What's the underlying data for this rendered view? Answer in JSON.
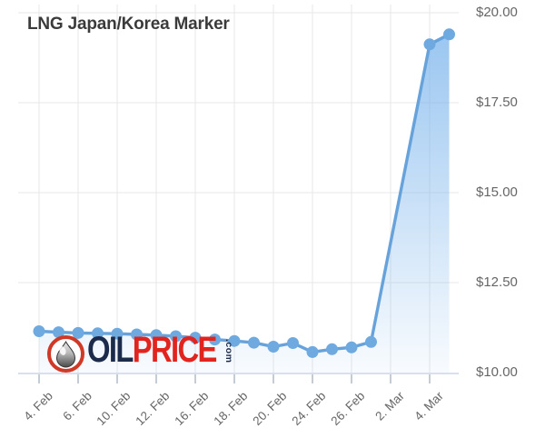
{
  "title": "LNG Japan/Korea Marker",
  "logo": {
    "word1": "OIL",
    "word2": "PRICE",
    "suffix": ".com",
    "circle_color": "#d13927",
    "word1_color": "#1c2b4a",
    "word2_color": "#e2241f"
  },
  "chart_data": {
    "type": "area",
    "title": "LNG Japan/Korea Marker",
    "ylabel": "",
    "xlabel": "",
    "unit": "USD",
    "ylim": [
      10,
      20
    ],
    "grid": "on",
    "legend": "none",
    "y_ticks": [
      {
        "label": "$10.00",
        "value": 10
      },
      {
        "label": "$12.50",
        "value": 12.5
      },
      {
        "label": "$15.00",
        "value": 15
      },
      {
        "label": "$17.50",
        "value": 17.5
      },
      {
        "label": "$20.00",
        "value": 20
      }
    ],
    "x_tick_labels": [
      {
        "label": "4. Feb",
        "index": 0
      },
      {
        "label": "6. Feb",
        "index": 2
      },
      {
        "label": "10. Feb",
        "index": 4
      },
      {
        "label": "12. Feb",
        "index": 6
      },
      {
        "label": "16. Feb",
        "index": 8
      },
      {
        "label": "18. Feb",
        "index": 10
      },
      {
        "label": "20. Feb",
        "index": 12
      },
      {
        "label": "24. Feb",
        "index": 14
      },
      {
        "label": "26. Feb",
        "index": 16
      },
      {
        "label": "2. Mar",
        "index": 18
      },
      {
        "label": "4. Mar",
        "index": 20
      }
    ],
    "points": [
      {
        "date": "4. Feb",
        "index": 0,
        "value": 11.15
      },
      {
        "date": "5. Feb",
        "index": 1,
        "value": 11.12
      },
      {
        "date": "6. Feb",
        "index": 2,
        "value": 11.1
      },
      {
        "date": "9. Feb",
        "index": 3,
        "value": 11.09
      },
      {
        "date": "10. Feb",
        "index": 4,
        "value": 11.08
      },
      {
        "date": "11. Feb",
        "index": 5,
        "value": 11.06
      },
      {
        "date": "12. Feb",
        "index": 6,
        "value": 11.04
      },
      {
        "date": "13. Feb",
        "index": 7,
        "value": 11.01
      },
      {
        "date": "16. Feb",
        "index": 8,
        "value": 10.97
      },
      {
        "date": "17. Feb",
        "index": 9,
        "value": 10.92
      },
      {
        "date": "18. Feb",
        "index": 10,
        "value": 10.88
      },
      {
        "date": "19. Feb",
        "index": 11,
        "value": 10.83
      },
      {
        "date": "20. Feb",
        "index": 12,
        "value": 10.72
      },
      {
        "date": "23. Feb",
        "index": 13,
        "value": 10.82
      },
      {
        "date": "24. Feb",
        "index": 14,
        "value": 10.57
      },
      {
        "date": "25. Feb",
        "index": 15,
        "value": 10.65
      },
      {
        "date": "26. Feb",
        "index": 16,
        "value": 10.7
      },
      {
        "date": "27. Feb",
        "index": 17,
        "value": 10.85
      },
      {
        "date": "4. Mar",
        "index": 20,
        "value": 19.12
      },
      {
        "date": "5. Mar",
        "index": 21,
        "value": 19.4
      }
    ],
    "colors": {
      "line": "#67a3da",
      "dot": "#6ea9e0",
      "area_top": "rgba(124,181,236,0.78)",
      "area_bottom": "rgba(124,181,236,0.05)",
      "grid": "#e7e7e7",
      "axis": "#ccd6eb",
      "tick": "#9fa9b8",
      "label": "#666666",
      "title": "#3b3b3b"
    }
  }
}
